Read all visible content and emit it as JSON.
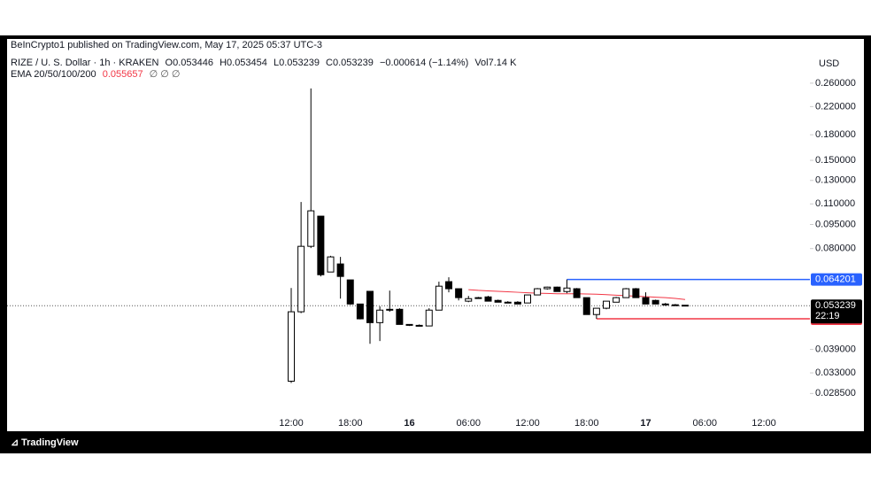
{
  "header": {
    "publisher": "BeInCrypto1 published on TradingView.com, May 17, 2025 05:37 UTC-3"
  },
  "footer": {
    "brand": "TradingView"
  },
  "chart_data": {
    "type": "candlestick",
    "symbol": "RIZE / U. S. Dollar · 1h · KRAKEN",
    "ohlc_letters": [
      "O",
      "H",
      "L",
      "C"
    ],
    "change": "−0.000614 (−1.14%)",
    "volume_label": "Vol",
    "volume": "7.14 K",
    "currency": "USD",
    "log_scale": true,
    "grid": false,
    "up_color": "#ffffff",
    "down_color": "#000000",
    "categories": [
      "12:00",
      null,
      null,
      null,
      null,
      null,
      "18:00",
      null,
      null,
      null,
      null,
      null,
      "16",
      null,
      null,
      null,
      null,
      null,
      "06:00",
      null,
      null,
      null,
      null,
      null,
      "12:00",
      null,
      null,
      null,
      null,
      null,
      "18:00",
      null,
      null,
      null,
      null,
      null,
      "17",
      null,
      null,
      null,
      null,
      null,
      "06:00",
      null,
      null,
      null,
      null,
      null,
      "12:00",
      null,
      null,
      null
    ],
    "open": [
      0.0311,
      0.051,
      0.0813,
      0.1008,
      0.0677,
      0.0717,
      0.064,
      0.0539,
      0.059,
      0.0472,
      0.0516,
      0.0519,
      0.0466,
      0.0463,
      0.0461,
      0.0516,
      0.0632,
      0.0601,
      0.055,
      0.0564,
      0.0567,
      0.0553,
      0.0546,
      0.0546,
      0.0543,
      0.0575,
      0.0601,
      0.0608,
      0.0589,
      0.0601,
      0.0564,
      0.05,
      0.0523,
      0.0546,
      0.0564,
      0.0601,
      0.0564,
      0.0553,
      0.0539,
      0.0536,
      0.053446,
      null,
      null,
      null,
      null,
      null,
      null,
      null,
      null,
      null,
      null,
      null
    ],
    "high": [
      0.0604,
      0.1115,
      0.2503,
      0.1008,
      0.076,
      0.0754,
      0.064,
      0.0539,
      0.059,
      0.053,
      0.0593,
      0.0523,
      0.0466,
      0.0466,
      0.0523,
      0.0632,
      0.0652,
      0.0601,
      0.0571,
      0.0567,
      0.0571,
      0.0556,
      0.055,
      0.055,
      0.0575,
      0.0604,
      0.061,
      0.061,
      0.064201,
      0.0604,
      0.0564,
      0.0523,
      0.055,
      0.0567,
      0.0604,
      0.0604,
      0.0586,
      0.0556,
      0.0543,
      0.0539,
      0.053454,
      null,
      null,
      null,
      null,
      null,
      null,
      null,
      null,
      null,
      null,
      null
    ],
    "low": [
      0.0307,
      0.0505,
      0.0803,
      0.0656,
      0.0677,
      0.056,
      0.0536,
      0.0483,
      0.0406,
      0.0414,
      0.051,
      0.0466,
      0.0461,
      0.0461,
      0.0461,
      0.0516,
      0.0586,
      0.0553,
      0.0546,
      0.056,
      0.055,
      0.0546,
      0.0543,
      0.0539,
      0.0543,
      0.0575,
      0.0597,
      0.0589,
      0.0582,
      0.0564,
      0.05,
      0.048512,
      0.0519,
      0.0546,
      0.0564,
      0.0564,
      0.0539,
      0.0539,
      0.0532,
      0.0534,
      0.053239,
      null,
      null,
      null,
      null,
      null,
      null,
      null,
      null,
      null,
      null,
      null
    ],
    "close": [
      0.051,
      0.0813,
      0.1047,
      0.0664,
      0.0754,
      0.0656,
      0.0539,
      0.0485,
      0.0472,
      0.0516,
      0.0519,
      0.0466,
      0.0463,
      0.0461,
      0.0516,
      0.0612,
      0.0601,
      0.0564,
      0.056,
      0.0562,
      0.055,
      0.0546,
      0.0543,
      0.0539,
      0.0575,
      0.0601,
      0.0608,
      0.0589,
      0.0604,
      0.0564,
      0.05,
      0.0523,
      0.055,
      0.0564,
      0.0601,
      0.0564,
      0.0539,
      0.0539,
      0.0536,
      0.0534,
      0.053239,
      null,
      null,
      null,
      null,
      null,
      null,
      null,
      null,
      null,
      null,
      null
    ],
    "ema": {
      "name": "EMA 20/50/100/200",
      "color": "#f23645",
      "disabled": "∅ ∅ ∅",
      "values": [
        null,
        null,
        null,
        null,
        null,
        null,
        null,
        null,
        null,
        null,
        null,
        null,
        null,
        null,
        null,
        null,
        null,
        null,
        0.0597,
        0.0594,
        0.0592,
        0.059,
        0.0588,
        0.0586,
        0.0584,
        0.0582,
        0.0581,
        0.058,
        0.058,
        0.058,
        0.0579,
        0.0578,
        0.0576,
        0.0574,
        0.0572,
        0.057,
        0.0568,
        0.0566,
        0.0564,
        0.0561,
        0.055657,
        null,
        null,
        null,
        null,
        null,
        null,
        null,
        null,
        null,
        null,
        null
      ]
    },
    "level_lines": [
      {
        "value": 0.064201,
        "color": "#2962ff"
      },
      {
        "value": 0.048512,
        "color": "#f23645"
      }
    ],
    "last_price": {
      "value": 0.053239,
      "countdown": "22:19",
      "color": "#000000"
    },
    "ylim": [
      0.0247,
      0.322
    ],
    "yticks": [
      {
        "value": 0.26,
        "label": "0.260000"
      },
      {
        "value": 0.22,
        "label": "0.220000"
      },
      {
        "value": 0.18,
        "label": "0.180000"
      },
      {
        "value": 0.15,
        "label": "0.150000"
      },
      {
        "value": 0.13,
        "label": "0.130000"
      },
      {
        "value": 0.11,
        "label": "0.110000"
      },
      {
        "value": 0.095,
        "label": "0.095000"
      },
      {
        "value": 0.08,
        "label": "0.080000"
      },
      {
        "value": 0.039,
        "label": "0.039000"
      },
      {
        "value": 0.033,
        "label": "0.033000"
      },
      {
        "value": 0.0285,
        "label": "0.028500"
      }
    ]
  }
}
